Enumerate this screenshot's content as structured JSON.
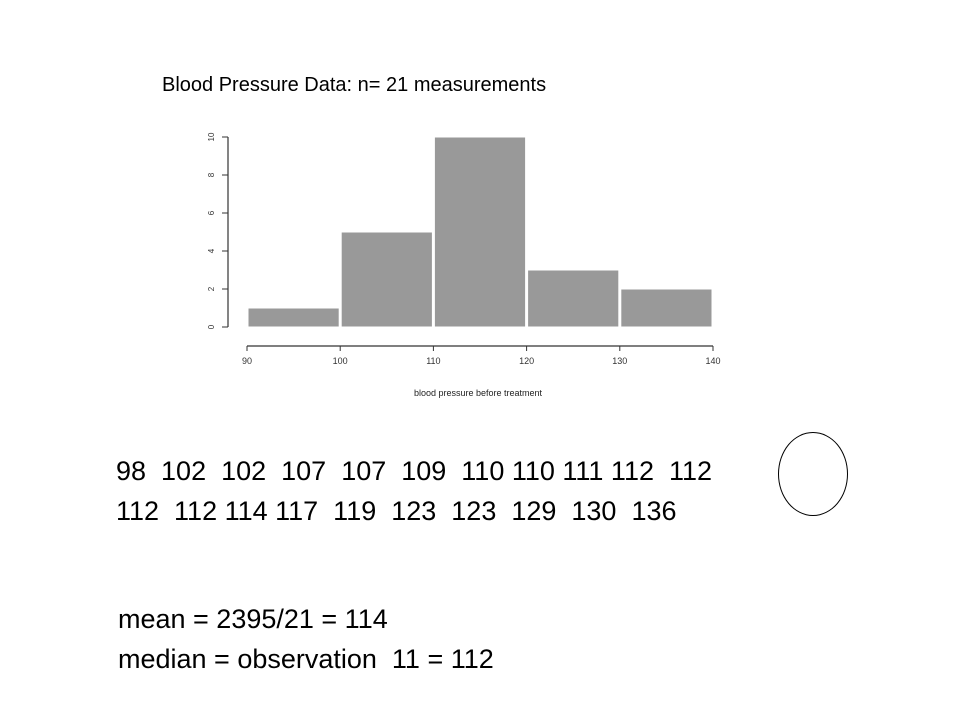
{
  "slide": {
    "title": "Blood Pressure Data: n= 21 measurements",
    "data_row_1": "98  102  102  107  107  109  110 110 111 112  112",
    "data_row_2": "112  112 114 117  119  123  123  129  130  136",
    "mean_line": "mean = 2395/21 = 114",
    "median_line": "median = observation  11 = 112"
  },
  "chart_data": {
    "type": "bar",
    "title": "",
    "xlabel": "blood pressure before treatment",
    "ylabel": "",
    "bin_edges": [
      90,
      100,
      110,
      120,
      130,
      140
    ],
    "values": [
      1,
      5,
      10,
      3,
      2
    ],
    "x_ticks": [
      "90",
      "100",
      "110",
      "120",
      "130",
      "140"
    ],
    "y_ticks": [
      "0",
      "2",
      "4",
      "6",
      "8",
      "10"
    ],
    "xlim": [
      90,
      140
    ],
    "ylim": [
      0,
      10
    ],
    "bar_color": "#999999",
    "grid": false,
    "legend": "none"
  }
}
